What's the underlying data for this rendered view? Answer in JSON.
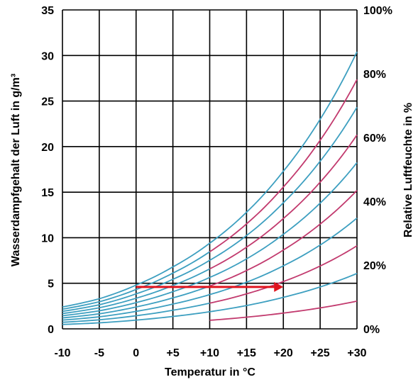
{
  "chart_data": {
    "type": "line",
    "title": "",
    "xlabel": "Temperatur in °C",
    "ylabel": "Wasserdampfgehalt der Luft in g/m³",
    "y2label": "Relative Luftfeuchte in %",
    "xlim": [
      -10,
      30
    ],
    "ylim": [
      0,
      35
    ],
    "y2lim": [
      0,
      100
    ],
    "grid": true,
    "x_ticks": [
      {
        "value": -10,
        "label": "-10"
      },
      {
        "value": -5,
        "label": "-5"
      },
      {
        "value": 0,
        "label": "0"
      },
      {
        "value": 5,
        "label": "+5"
      },
      {
        "value": 10,
        "label": "+10"
      },
      {
        "value": 15,
        "label": "+15"
      },
      {
        "value": 20,
        "label": "+20"
      },
      {
        "value": 25,
        "label": "+25"
      },
      {
        "value": 30,
        "label": "+30"
      }
    ],
    "y_ticks": [
      {
        "value": 0,
        "label": "0"
      },
      {
        "value": 5,
        "label": "5"
      },
      {
        "value": 10,
        "label": "10"
      },
      {
        "value": 15,
        "label": "15"
      },
      {
        "value": 20,
        "label": "20"
      },
      {
        "value": 25,
        "label": "25"
      },
      {
        "value": 30,
        "label": "30"
      },
      {
        "value": 35,
        "label": "35"
      }
    ],
    "y2_ticks": [
      {
        "value": 0,
        "label": "0%"
      },
      {
        "value": 20,
        "label": "20%"
      },
      {
        "value": 40,
        "label": "40%"
      },
      {
        "value": 60,
        "label": "60%"
      },
      {
        "value": 80,
        "label": "80%"
      },
      {
        "value": 100,
        "label": "100%"
      }
    ],
    "x": [
      -10,
      -5,
      0,
      5,
      10,
      15,
      20,
      25,
      30
    ],
    "saturation_100": [
      2.4,
      3.3,
      4.8,
      6.8,
      9.4,
      12.8,
      17.3,
      23.0,
      30.4
    ],
    "series": [
      {
        "rh": 100,
        "color": "#3d9fc0",
        "red_from_x": null,
        "x_from": -10
      },
      {
        "rh": 90,
        "color": "#c23a6e",
        "red_from_x": 10,
        "x_from": -10
      },
      {
        "rh": 80,
        "color": "#3d9fc0",
        "red_from_x": null,
        "x_from": -10
      },
      {
        "rh": 70,
        "color": "#c23a6e",
        "red_from_x": 10,
        "x_from": -10
      },
      {
        "rh": 60,
        "color": "#3d9fc0",
        "red_from_x": null,
        "x_from": -10
      },
      {
        "rh": 50,
        "color": "#c23a6e",
        "red_from_x": 10,
        "x_from": -10
      },
      {
        "rh": 40,
        "color": "#3d9fc0",
        "red_from_x": null,
        "x_from": -10
      },
      {
        "rh": 30,
        "color": "#c23a6e",
        "red_from_x": 10,
        "x_from": -10
      },
      {
        "rh": 20,
        "color": "#3d9fc0",
        "red_from_x": null,
        "x_from": -10
      },
      {
        "rh": 10,
        "color": "#c23a6e",
        "red_from_x": null,
        "x_from": 10
      }
    ],
    "arrow": {
      "x_start": 0,
      "x_end": 20,
      "y": 4.6,
      "color": "#e0141e"
    },
    "colors": {
      "blue": "#3d9fc0",
      "magenta": "#c23a6e",
      "grid": "#000000"
    }
  }
}
